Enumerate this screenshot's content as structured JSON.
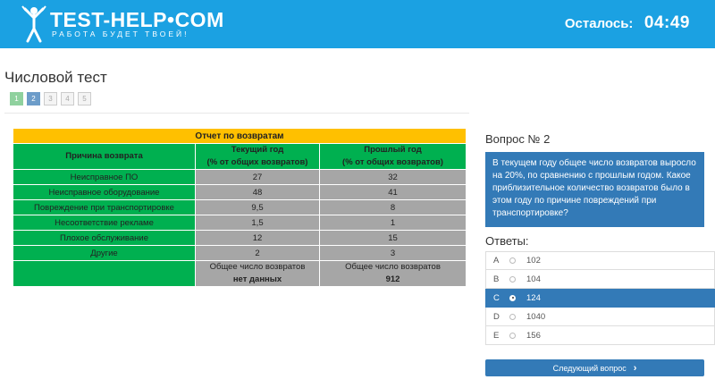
{
  "header": {
    "logo_text": "TEST-HELP•COM",
    "logo_tagline": "РАБОТА БУДЕТ ТВОЕЙ!",
    "remaining_label": "Осталось:",
    "remaining_time": "04:49",
    "bg_color": "#1ba1e2"
  },
  "test": {
    "title": "Числовой тест",
    "pages": [
      "1",
      "2",
      "3",
      "4",
      "5"
    ],
    "current_page": 2
  },
  "report": {
    "title": "Отчет по возвратам",
    "col_reason": "Причина возврата",
    "col_current_line1": "Текущий год",
    "col_current_line2": "(% от общих возвратов)",
    "col_previous_line1": "Прошлый год",
    "col_previous_line2": "(% от общих возвратов)",
    "rows": [
      {
        "reason": "Неисправное ПО",
        "current": "27",
        "previous": "32"
      },
      {
        "reason": "Неисправное оборудование",
        "current": "48",
        "previous": "41"
      },
      {
        "reason": "Повреждение при транспортировке",
        "current": "9,5",
        "previous": "8"
      },
      {
        "reason": "Несоответствие рекламе",
        "current": "1,5",
        "previous": "1"
      },
      {
        "reason": "Плохое обслуживание",
        "current": "12",
        "previous": "15"
      },
      {
        "reason": "Другие",
        "current": "2",
        "previous": "3"
      }
    ],
    "total_label_current": "Общее число возвратов",
    "total_value_current": "нет данных",
    "total_label_previous": "Общее число возвратов",
    "total_value_previous": "912"
  },
  "question": {
    "title": "Вопрос № 2",
    "text": "В текущем году общее число возвратов выросло на 20%, по сравнению с прошлым годом. Какое приблизительное количество возвратов было в этом году по причине повреждений при транспортировке?",
    "answers_title": "Ответы:",
    "answers": [
      {
        "letter": "A",
        "value": "102"
      },
      {
        "letter": "B",
        "value": "104"
      },
      {
        "letter": "C",
        "value": "124"
      },
      {
        "letter": "D",
        "value": "1040"
      },
      {
        "letter": "E",
        "value": "156"
      }
    ],
    "selected": "C",
    "next_label": "Следующий вопрос"
  }
}
